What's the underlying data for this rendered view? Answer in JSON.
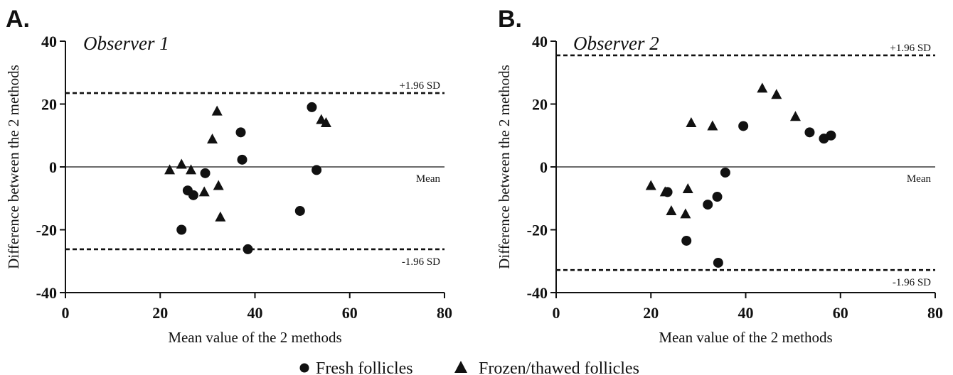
{
  "legend": {
    "fresh_label": "Fresh follicles",
    "frozen_label": "Frozen/thawed follicles"
  },
  "chart_data": [
    {
      "type": "scatter",
      "panel": "A.",
      "title": "Observer 1",
      "xlabel": "Mean value of the 2 methods",
      "ylabel": "Difference between the 2 methods",
      "xlim": [
        0,
        80
      ],
      "ylim": [
        -40,
        40
      ],
      "xticks": [
        "0",
        "20",
        "40",
        "60",
        "80"
      ],
      "yticks": [
        "40",
        "20",
        "0",
        "-20",
        "-40"
      ],
      "grid": false,
      "reference_lines": [
        {
          "label": "+1.96 SD",
          "y": 23.5,
          "style": "dashed"
        },
        {
          "label": "Mean",
          "y": 0,
          "style": "solid"
        },
        {
          "label": "-1.96 SD",
          "y": -26.2,
          "style": "dashed"
        }
      ],
      "series": [
        {
          "name": "Fresh follicles",
          "marker": "circle",
          "x": [
            24.5,
            25.8,
            27,
            29.5,
            37,
            37.3,
            38.5,
            49.5,
            52,
            53
          ],
          "y": [
            -20,
            -7.5,
            -9,
            -2,
            11,
            2.3,
            -26.2,
            -14,
            19,
            -1
          ]
        },
        {
          "name": "Frozen/thawed follicles",
          "marker": "triangle",
          "x": [
            22,
            24.5,
            26.5,
            29.3,
            31,
            32,
            32.3,
            32.7,
            54,
            55
          ],
          "y": [
            -1,
            0.8,
            -1,
            -8,
            8.8,
            17.7,
            -6,
            -16,
            15,
            14
          ]
        }
      ]
    },
    {
      "type": "scatter",
      "panel": "B.",
      "title": "Observer 2",
      "xlabel": "Mean value of the 2 methods",
      "ylabel": "Difference between the 2 methods",
      "xlim": [
        0,
        80
      ],
      "ylim": [
        -40,
        40
      ],
      "xticks": [
        "0",
        "20",
        "40",
        "60",
        "80"
      ],
      "yticks": [
        "40",
        "20",
        "0",
        "-20",
        "-40"
      ],
      "grid": false,
      "reference_lines": [
        {
          "label": "+1.96 SD",
          "y": 35.5,
          "style": "dashed"
        },
        {
          "label": "Mean",
          "y": 0,
          "style": "solid"
        },
        {
          "label": "-1.96 SD",
          "y": -32.8,
          "style": "dashed"
        }
      ],
      "series": [
        {
          "name": "Fresh follicles",
          "marker": "circle",
          "x": [
            23.5,
            27.5,
            32,
            34,
            34.2,
            35.7,
            39.5,
            53.5,
            56.5,
            58
          ],
          "y": [
            -8,
            -23.5,
            -12,
            -9.5,
            -30.5,
            -1.8,
            13,
            11,
            9,
            10
          ]
        },
        {
          "name": "Frozen/thawed follicles",
          "marker": "triangle",
          "x": [
            20,
            23,
            24.3,
            27.3,
            27.8,
            28.5,
            33,
            43.5,
            46.5,
            50.5
          ],
          "y": [
            -6,
            -8,
            -14,
            -15,
            -7,
            14,
            13,
            25,
            23,
            16
          ]
        }
      ]
    }
  ]
}
